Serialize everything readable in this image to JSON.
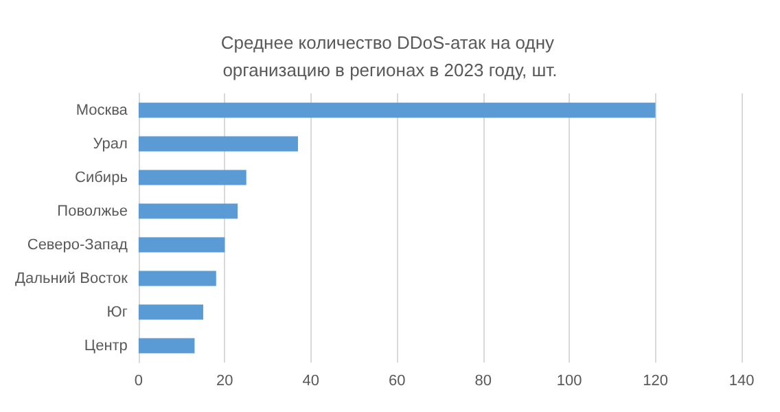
{
  "chart_data": {
    "type": "bar",
    "orientation": "horizontal",
    "title": "Среднее количество DDoS-атак на одну организацию в регионах в 2023 году, шт.",
    "categories": [
      "Москва",
      "Урал",
      "Сибирь",
      "Поволжье",
      "Северо-Запад",
      "Дальний Восток",
      "Юг",
      "Центр"
    ],
    "values": [
      120,
      37,
      25,
      23,
      20,
      18,
      15,
      13
    ],
    "color": "#5b9bd5",
    "xlim": [
      0,
      140
    ],
    "xticks": [
      0,
      20,
      40,
      60,
      80,
      100,
      120,
      140
    ],
    "grid": "x"
  }
}
